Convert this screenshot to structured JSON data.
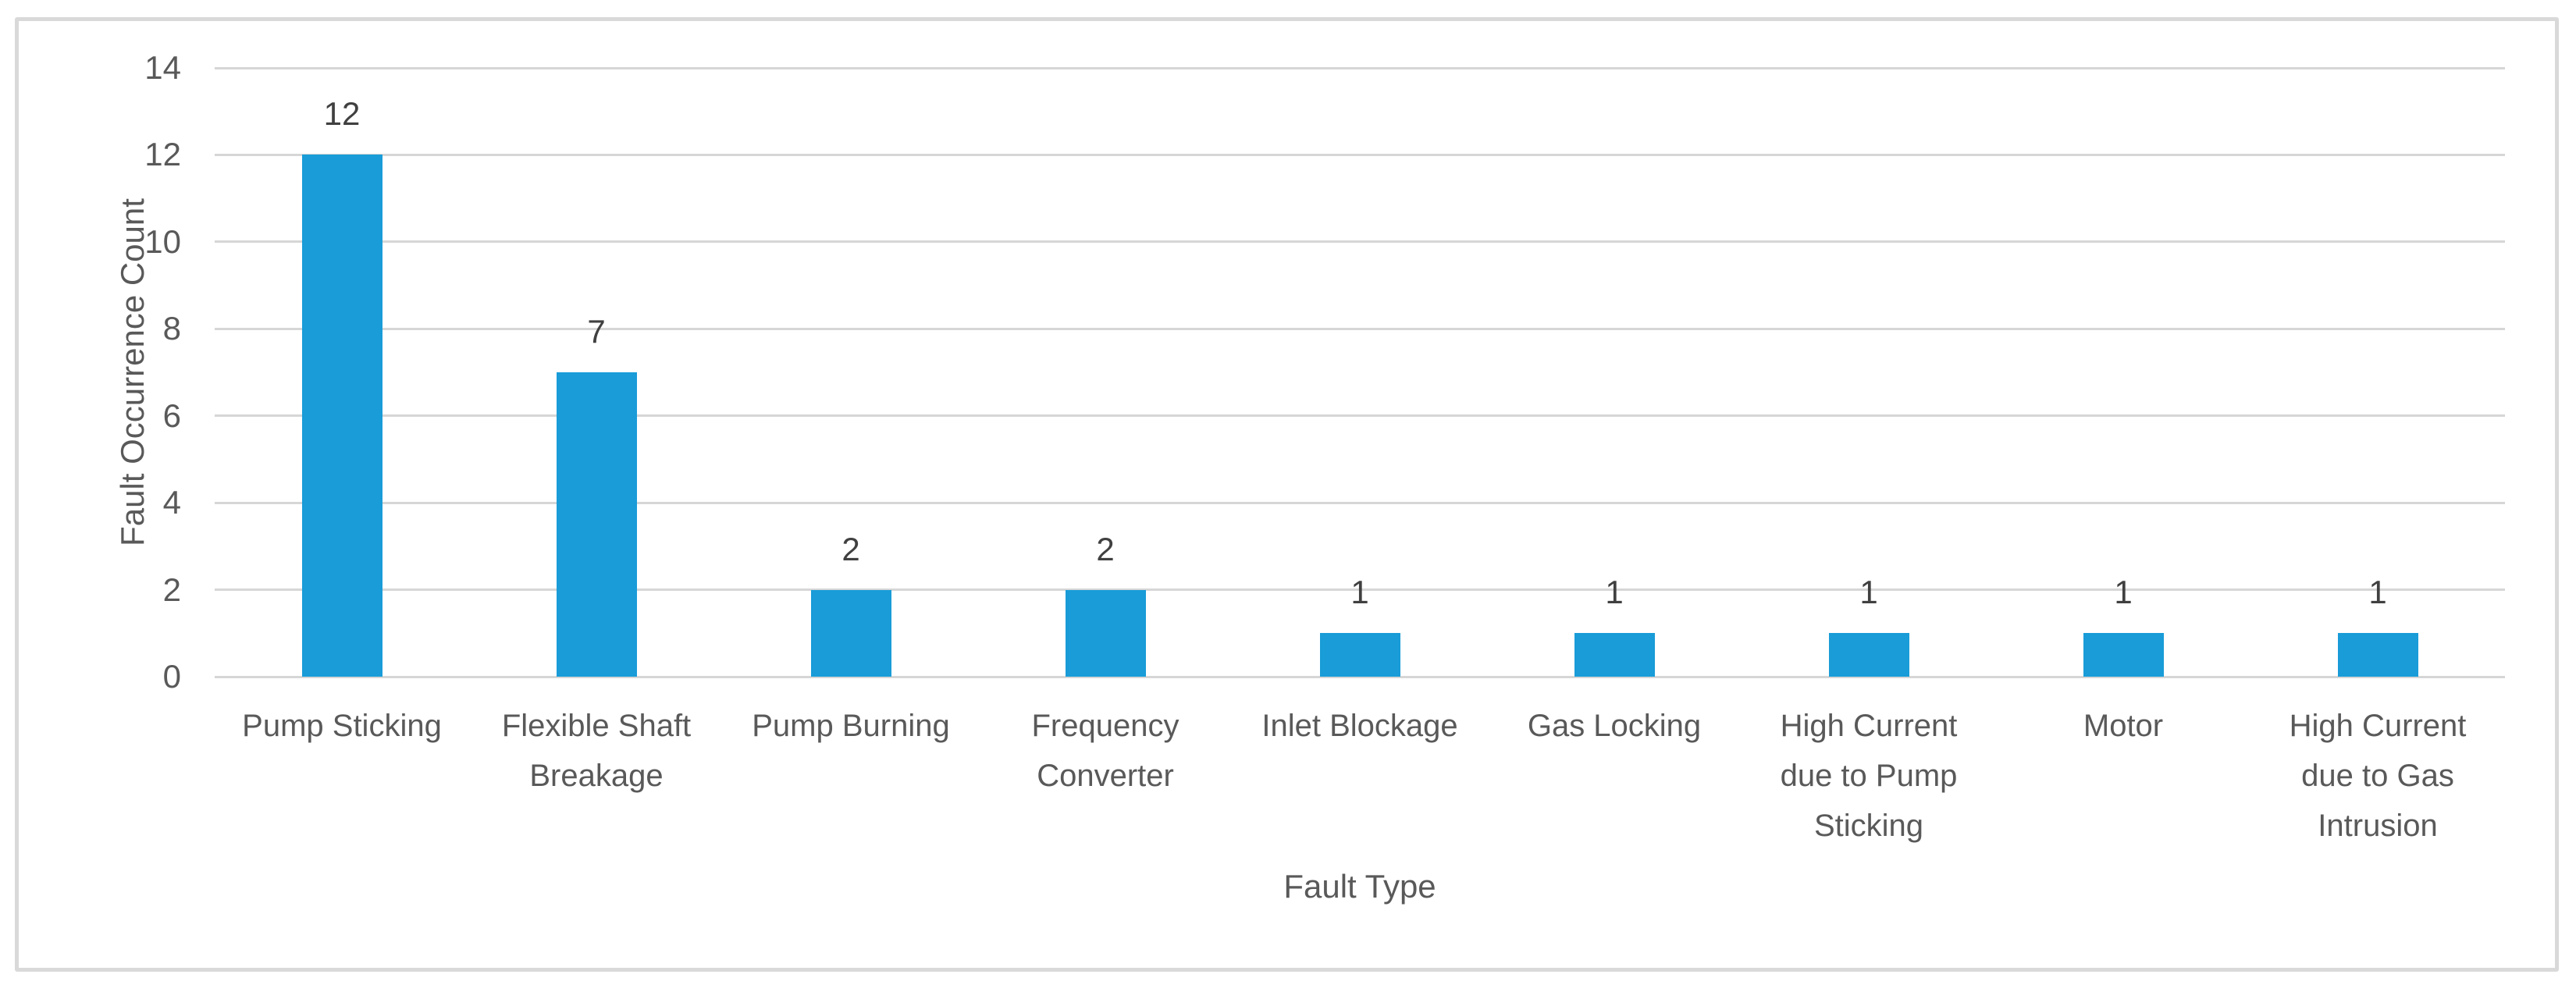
{
  "figure": {
    "background": "#ffffff",
    "border_color": "#d9d9d9"
  },
  "chart_data": {
    "type": "bar",
    "title": "",
    "xlabel": "Fault Type",
    "ylabel": "Fault Occurrence Count",
    "categories": [
      "Pump Sticking",
      "Flexible Shaft Breakage",
      "Pump Burning",
      "Frequency Converter",
      "Inlet Blockage",
      "Gas Locking",
      "High Current due to Pump Sticking",
      "Motor",
      "High Current due to Gas Intrusion"
    ],
    "category_lines": [
      [
        "Pump Sticking"
      ],
      [
        "Flexible Shaft",
        "Breakage"
      ],
      [
        "Pump Burning"
      ],
      [
        "Frequency",
        "Converter"
      ],
      [
        "Inlet Blockage"
      ],
      [
        "Gas Locking"
      ],
      [
        "High Current",
        "due to Pump",
        "Sticking"
      ],
      [
        "Motor"
      ],
      [
        "High Current",
        "due to Gas",
        "Intrusion"
      ]
    ],
    "values": [
      12,
      7,
      2,
      2,
      1,
      1,
      1,
      1,
      1
    ],
    "data_labels": [
      "12",
      "7",
      "2",
      "2",
      "1",
      "1",
      "1",
      "1",
      "1"
    ],
    "ylim": [
      0,
      14
    ],
    "ytick_step": 2,
    "yticks": [
      0,
      2,
      4,
      6,
      8,
      10,
      12,
      14
    ],
    "grid": "horizontal",
    "legend": "none",
    "bar_color": "#199cd8",
    "gridline_color": "#d6d6d6",
    "axis_text_color": "#595959",
    "data_label_color": "#404040"
  }
}
